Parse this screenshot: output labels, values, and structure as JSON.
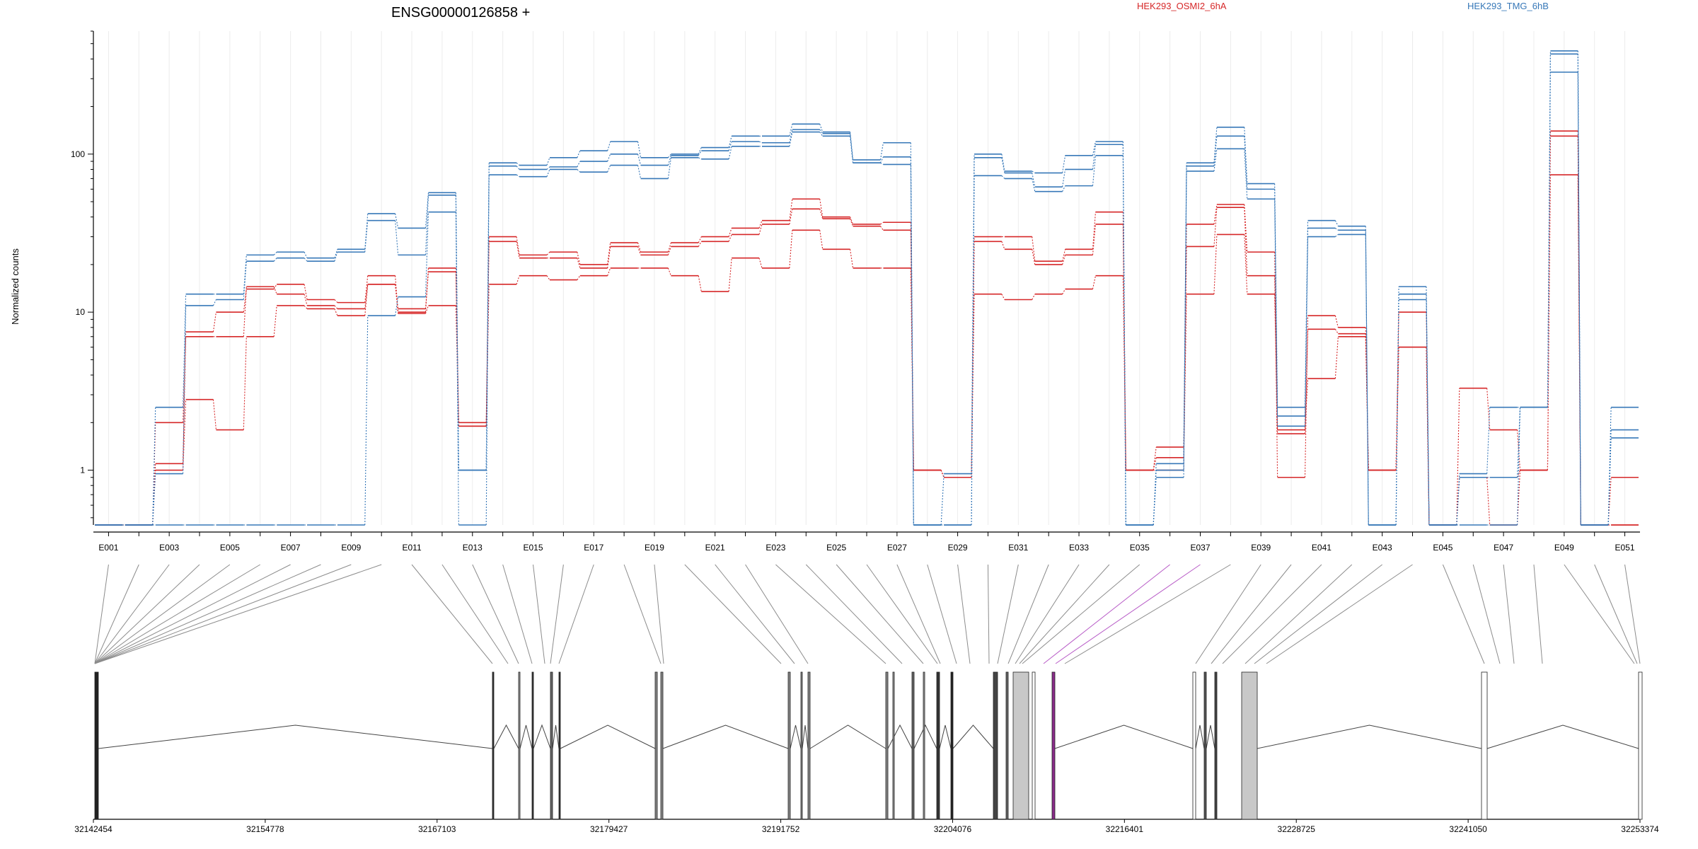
{
  "chart_data": {
    "type": "line",
    "title": "ENSG00000126858 +",
    "ylabel": "Normalized counts",
    "yscale": "log",
    "ylim": [
      0.45,
      600
    ],
    "yticks": [
      1,
      10,
      100
    ],
    "ytick_labels": [
      "1",
      "10",
      "100"
    ],
    "grid": "vertical",
    "legend": [
      {
        "name": "HEK293_OSMI2_6hA",
        "color": "#d62728"
      },
      {
        "name": "HEK293_TMG_6hB",
        "color": "#3778b8"
      }
    ],
    "exon_labels": [
      "E001",
      "E003",
      "E005",
      "E007",
      "E009",
      "E011",
      "E013",
      "E015",
      "E017",
      "E019",
      "E021",
      "E023",
      "E025",
      "E027",
      "E029",
      "E031",
      "E033",
      "E035",
      "E037",
      "E039",
      "E041",
      "E043",
      "E045",
      "E047",
      "E049",
      "E051"
    ],
    "exons": [
      "E001",
      "E002",
      "E003",
      "E004",
      "E005",
      "E006",
      "E007",
      "E008",
      "E009",
      "E010",
      "E011",
      "E012",
      "E013",
      "E014",
      "E015",
      "E016",
      "E017",
      "E018",
      "E019",
      "E020",
      "E021",
      "E022",
      "E023",
      "E024",
      "E025",
      "E026",
      "E027",
      "E028",
      "E029",
      "E030",
      "E031",
      "E032",
      "E033",
      "E034",
      "E035",
      "E036",
      "E037",
      "E038",
      "E039",
      "E040",
      "E041",
      "E042",
      "E043",
      "E044",
      "E045",
      "E046",
      "E047",
      "E048",
      "E049",
      "E050",
      "E051"
    ],
    "series": [
      {
        "group": "HEK293_OSMI2_6hA",
        "values": [
          0.45,
          0.45,
          2.0,
          7.5,
          10,
          14,
          15,
          12,
          11.5,
          17,
          10,
          19,
          2.0,
          30,
          23,
          24,
          20,
          27.5,
          24,
          27.5,
          30,
          34,
          38,
          52,
          40,
          36,
          37,
          1.0,
          0.9,
          30,
          30,
          21,
          25,
          43,
          1.0,
          1.4,
          36,
          48,
          24,
          0.9,
          9.5,
          8.0,
          1.0,
          10,
          0.45,
          3.3,
          1.8,
          1.0,
          140,
          0.45,
          0.9
        ]
      },
      {
        "group": "HEK293_OSMI2_6hA",
        "values": [
          0.45,
          0.45,
          1.1,
          7.0,
          7.0,
          14.5,
          13,
          11,
          10.5,
          15,
          10.5,
          18,
          1.9,
          28,
          22,
          22,
          19,
          26,
          23,
          26,
          28,
          31,
          36,
          45,
          39,
          35,
          33,
          1.0,
          0.9,
          28,
          25,
          20,
          23,
          36,
          1.0,
          1.2,
          26,
          46,
          17,
          1.7,
          7.8,
          7.3,
          1.0,
          6.0,
          0.45,
          0.9,
          0.9,
          1.0,
          130,
          0.45,
          0.45
        ]
      },
      {
        "group": "HEK293_OSMI2_6hA",
        "values": [
          0.45,
          0.45,
          1.0,
          2.8,
          1.8,
          7.0,
          11,
          10.5,
          9.5,
          15,
          9.8,
          11,
          1.9,
          15,
          17,
          16,
          17,
          19,
          19,
          17,
          13.5,
          22,
          19,
          33,
          25,
          19,
          19,
          1.0,
          0.9,
          13,
          12,
          13,
          14,
          17,
          1.0,
          1.0,
          13,
          31,
          13,
          1.8,
          3.8,
          7.0,
          1.0,
          6.0,
          0.45,
          0.9,
          0.45,
          1.0,
          74,
          0.45,
          0.45
        ]
      },
      {
        "group": "HEK293_TMG_6hB",
        "values": [
          0.45,
          0.45,
          2.5,
          13,
          13,
          23,
          24,
          22,
          25,
          42,
          34,
          57,
          1.0,
          88,
          85,
          95,
          105,
          120,
          95,
          100,
          110,
          130,
          130,
          155,
          138,
          92,
          118,
          0.45,
          0.95,
          100,
          78,
          76,
          98,
          120,
          0.45,
          1.1,
          88,
          148,
          65,
          2.5,
          38,
          35,
          0.45,
          14.5,
          0.45,
          0.95,
          2.5,
          2.5,
          450,
          0.45,
          2.5
        ]
      },
      {
        "group": "HEK293_TMG_6hB",
        "values": [
          0.45,
          0.45,
          0.95,
          11,
          12,
          21,
          22,
          21,
          24,
          38,
          23,
          55,
          1.0,
          84,
          80,
          83,
          90,
          100,
          85,
          98,
          105,
          120,
          118,
          143,
          135,
          88,
          96,
          0.45,
          0.45,
          95,
          76,
          62,
          80,
          115,
          0.45,
          1.0,
          84,
          130,
          60,
          2.2,
          34,
          33,
          0.45,
          13,
          0.45,
          0.9,
          0.9,
          2.5,
          430,
          0.45,
          1.8
        ]
      },
      {
        "group": "HEK293_TMG_6hB",
        "values": [
          0.45,
          0.45,
          0.45,
          0.45,
          0.45,
          0.45,
          0.45,
          0.45,
          0.45,
          9.5,
          12.5,
          43,
          0.45,
          74,
          72,
          80,
          77,
          85,
          70,
          95,
          93,
          112,
          112,
          138,
          130,
          88,
          86,
          0.45,
          0.45,
          73,
          70,
          58,
          63,
          98,
          0.45,
          0.9,
          78,
          108,
          52,
          1.9,
          30,
          31,
          0.45,
          12,
          0.45,
          0.45,
          0.45,
          2.5,
          330,
          0.45,
          1.6
        ]
      }
    ],
    "gene_coordinates": {
      "start": 32142454,
      "end": 32253374,
      "tick_labels": [
        "32142454",
        "32154778",
        "32167103",
        "32179427",
        "32191752",
        "32204076",
        "32216401",
        "32228725",
        "32241050",
        "32253374"
      ]
    }
  }
}
